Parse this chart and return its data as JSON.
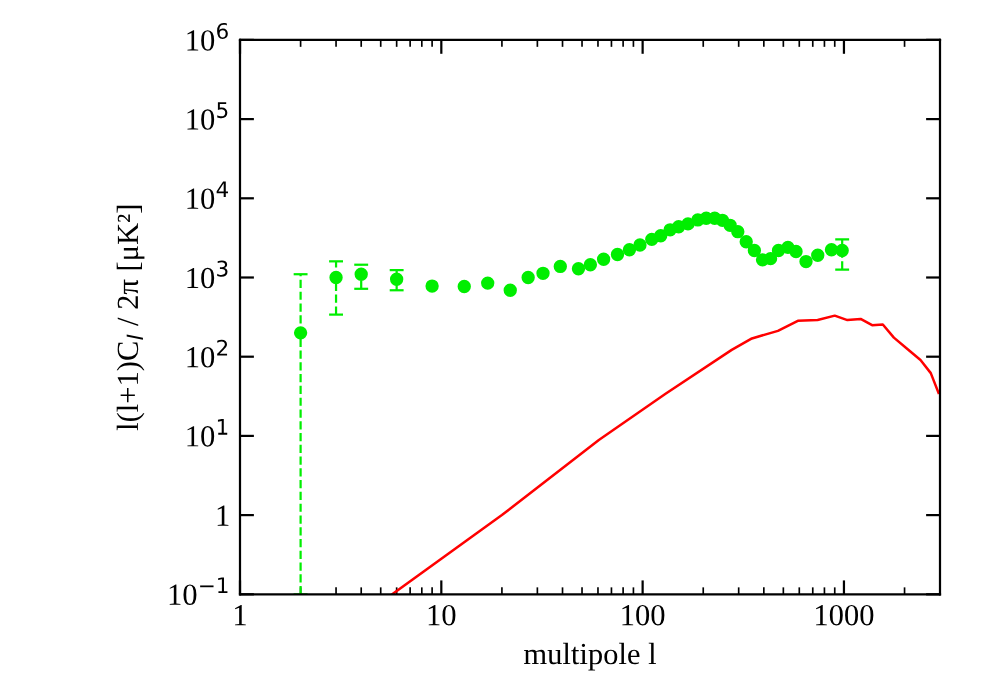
{
  "chart_data": {
    "type": "scatter",
    "xlabel": "multipole l",
    "ylabel": "l(l+1)C$_{l}$ / 2π [μK²]",
    "log": "xy",
    "grid": false,
    "marker": "circle",
    "xlim": [
      1,
      3000
    ],
    "xticks": [
      1,
      10,
      100,
      1000
    ],
    "ylim": [
      0.1,
      1000000
    ],
    "yticks": [
      {
        "value": 0.1,
        "label": "10$^{−1}$"
      },
      1,
      {
        "value": 10,
        "label": "10$^{1}$"
      },
      {
        "value": 100,
        "label": "10$^{2}$"
      },
      {
        "value": 1000,
        "label": "10$^{3}$"
      },
      {
        "value": 10000,
        "label": "10$^{4}$"
      },
      {
        "value": 100000,
        "label": "10$^{5}$"
      },
      {
        "value": 1000000,
        "label": "10$^{6}$"
      }
    ],
    "series": [
      {
        "color": "#00ee00",
        "x": [
          2,
          3,
          4,
          6,
          9,
          13,
          17,
          22,
          27,
          32,
          39,
          48,
          55,
          64,
          75,
          86,
          97,
          111,
          123,
          137,
          151,
          168,
          188,
          207,
          228,
          249,
          272,
          297,
          327,
          359,
          394,
          432,
          473,
          527,
          578,
          648,
          741,
          867,
          980
        ],
        "values": [
          200,
          1000,
          1100,
          950,
          780,
          770,
          850,
          690,
          1000,
          1130,
          1380,
          1290,
          1450,
          1700,
          1950,
          2240,
          2570,
          3030,
          3370,
          4000,
          4370,
          4750,
          5330,
          5600,
          5600,
          5270,
          4560,
          3790,
          2830,
          2190,
          1670,
          1730,
          2190,
          2400,
          2130,
          1590,
          1910,
          2240,
          2190
        ],
        "errors": [
          [
            0.1,
            1100
          ],
          [
            340,
            1600
          ],
          [
            720,
            1450
          ],
          [
            690,
            1240
          ],
          null,
          null,
          null,
          null,
          null,
          null,
          null,
          null,
          null,
          null,
          null,
          null,
          null,
          null,
          null,
          null,
          null,
          null,
          null,
          null,
          null,
          null,
          null,
          null,
          null,
          null,
          null,
          null,
          null,
          null,
          null,
          null,
          null,
          null,
          [
            1260,
            3030
          ]
        ]
      },
      {
        "type": "line",
        "color": "#ff0000",
        "marker": "none",
        "x": [
          5.7,
          20,
          60.6,
          130,
          277,
          349,
          470,
          590,
          740,
          900,
          1040,
          1210,
          1380,
          1560,
          1770,
          2080,
          2400,
          2700,
          2950
        ],
        "values": [
          0.1,
          1.0,
          8.9,
          34,
          122,
          170,
          212,
          284,
          290,
          330,
          290,
          300,
          250,
          255,
          174,
          123,
          91,
          62,
          35
        ]
      }
    ]
  }
}
